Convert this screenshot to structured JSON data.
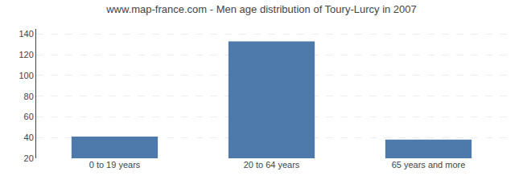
{
  "chart_data": {
    "type": "bar",
    "title": "www.map-france.com - Men age distribution of Toury-Lurcy in 2007",
    "categories": [
      "0 to 19 years",
      "20 to 64 years",
      "65 years and more"
    ],
    "values": [
      41,
      133,
      38
    ],
    "color": "#4d7aaa",
    "ylim": [
      20,
      145
    ],
    "yticks": [
      20,
      40,
      60,
      80,
      100,
      120,
      140
    ],
    "grid": true
  }
}
